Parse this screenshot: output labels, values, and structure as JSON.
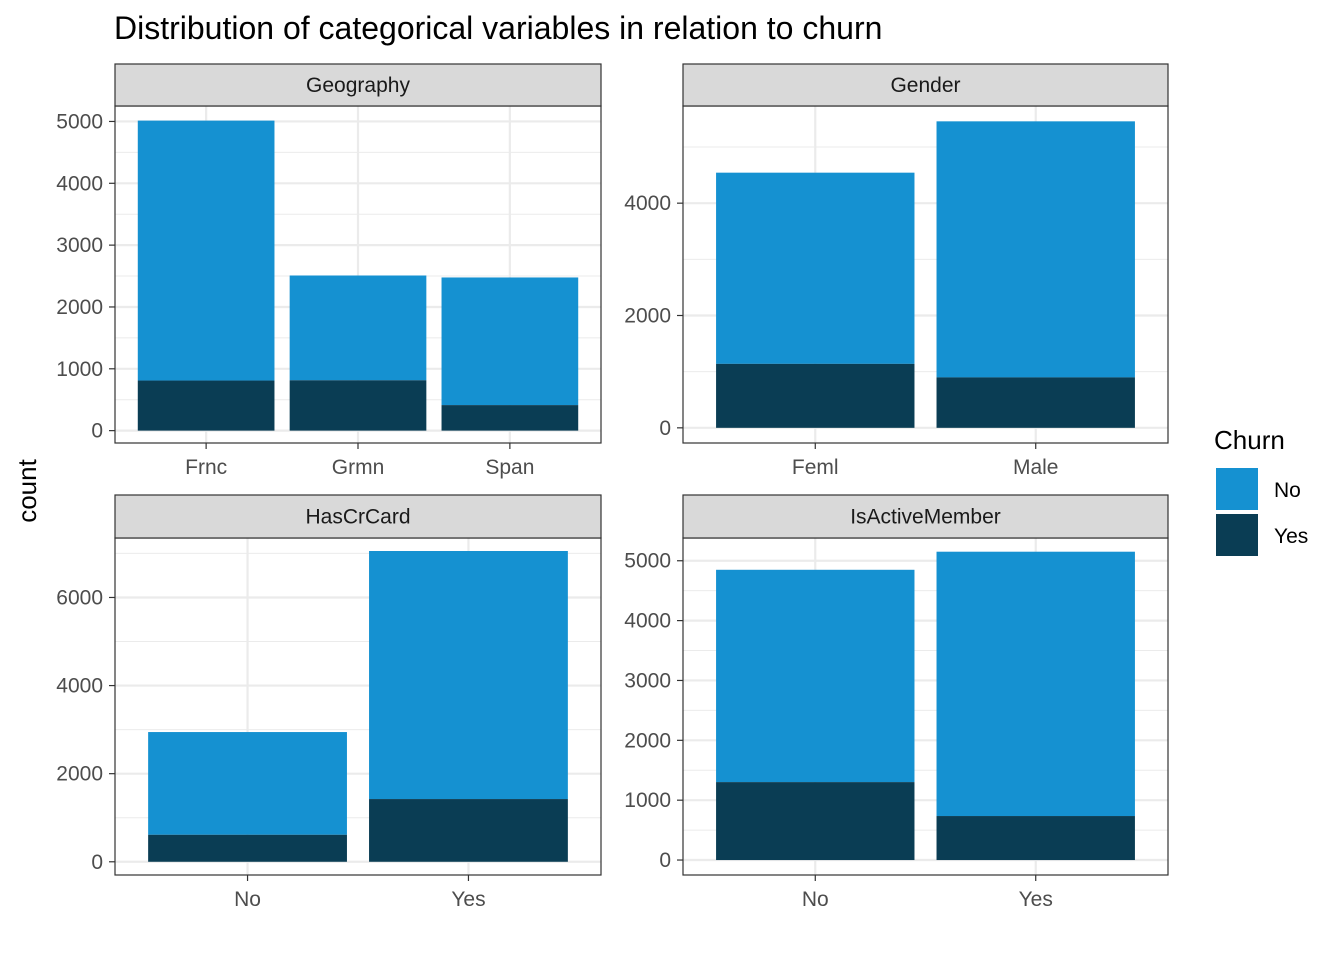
{
  "chart_data": {
    "type": "bar",
    "stacked": true,
    "title": "Distribution of categorical variables in relation to churn",
    "ylabel": "count",
    "xlabel": "",
    "grid": true,
    "legend": {
      "title": "Churn",
      "placement": "right",
      "entries": [
        {
          "label": "No",
          "color": "#1591d1"
        },
        {
          "label": "Yes",
          "color": "#0a3d54"
        }
      ]
    },
    "panels": [
      {
        "name": "Geography",
        "categories": [
          "Frnc",
          "Grmn",
          "Span"
        ],
        "series": [
          {
            "name": "No",
            "values": [
              4204,
              1695,
              2064
            ]
          },
          {
            "name": "Yes",
            "values": [
              810,
              814,
              413
            ]
          }
        ],
        "ylim": [
          -200,
          5250
        ],
        "yticks": [
          0,
          1000,
          2000,
          3000,
          4000,
          5000
        ]
      },
      {
        "name": "Gender",
        "categories": [
          "Feml",
          "Male"
        ],
        "series": [
          {
            "name": "No",
            "values": [
              3404,
              4559
            ]
          },
          {
            "name": "Yes",
            "values": [
              1139,
              898
            ]
          }
        ],
        "ylim": [
          -270,
          5730
        ],
        "yticks": [
          0,
          2000,
          4000
        ]
      },
      {
        "name": "HasCrCard",
        "categories": [
          "No",
          "Yes"
        ],
        "series": [
          {
            "name": "No",
            "values": [
              2332,
              5631
            ]
          },
          {
            "name": "Yes",
            "values": [
              613,
              1424
            ]
          }
        ],
        "ylim": [
          -300,
          7350
        ],
        "yticks": [
          0,
          2000,
          4000,
          6000
        ]
      },
      {
        "name": "IsActiveMember",
        "categories": [
          "No",
          "Yes"
        ],
        "series": [
          {
            "name": "No",
            "values": [
              3547,
              4416
            ]
          },
          {
            "name": "Yes",
            "values": [
              1302,
              735
            ]
          }
        ],
        "ylim": [
          -250,
          5380
        ],
        "yticks": [
          0,
          1000,
          2000,
          3000,
          4000,
          5000
        ]
      }
    ]
  },
  "colors": {
    "strip_fill": "#d9d9d9",
    "panel_border": "#333333",
    "grid": "#ebebeb"
  }
}
